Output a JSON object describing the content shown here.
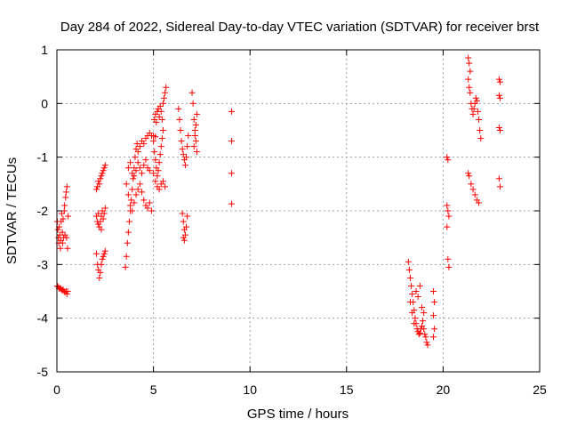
{
  "chart_data": {
    "type": "scatter",
    "title": "Day 284 of 2022, Sidereal Day-to-day VTEC variation (SDTVAR) for receiver brst",
    "xlabel": "GPS time / hours",
    "ylabel": "SDTVAR / TECUs",
    "xlim": [
      0,
      25
    ],
    "ylim": [
      -5,
      1
    ],
    "xticks": [
      0,
      5,
      10,
      15,
      20,
      25
    ],
    "yticks": [
      -5,
      -4,
      -3,
      -2,
      -1,
      0,
      1
    ],
    "grid": true,
    "marker": "+",
    "series": [
      {
        "name": "SDTVAR",
        "color": "#ff0000",
        "points": [
          [
            0.02,
            -2.2
          ],
          [
            0.05,
            -2.35
          ],
          [
            0.08,
            -2.5
          ],
          [
            0.1,
            -2.6
          ],
          [
            0.12,
            -2.3
          ],
          [
            0.15,
            -2.45
          ],
          [
            0.18,
            -2.7
          ],
          [
            0.2,
            -2.55
          ],
          [
            0.22,
            -2.2
          ],
          [
            0.25,
            -2.05
          ],
          [
            0.28,
            -2.4
          ],
          [
            0.3,
            -2.6
          ],
          [
            0.32,
            -2.15
          ],
          [
            0.35,
            -2.5
          ],
          [
            0.38,
            -2.0
          ],
          [
            0.4,
            -1.9
          ],
          [
            0.42,
            -2.45
          ],
          [
            0.45,
            -1.75
          ],
          [
            0.48,
            -1.65
          ],
          [
            0.5,
            -2.5
          ],
          [
            0.52,
            -1.55
          ],
          [
            0.55,
            -2.7
          ],
          [
            0.58,
            -2.1
          ],
          [
            0.02,
            -3.4
          ],
          [
            0.08,
            -3.42
          ],
          [
            0.12,
            -3.45
          ],
          [
            0.18,
            -3.44
          ],
          [
            0.22,
            -3.46
          ],
          [
            0.28,
            -3.48
          ],
          [
            0.32,
            -3.47
          ],
          [
            0.38,
            -3.5
          ],
          [
            0.42,
            -3.52
          ],
          [
            0.48,
            -3.5
          ],
          [
            0.52,
            -3.55
          ],
          [
            0.56,
            -3.5
          ],
          [
            2.05,
            -1.6
          ],
          [
            2.1,
            -1.55
          ],
          [
            2.15,
            -1.45
          ],
          [
            2.2,
            -1.5
          ],
          [
            2.25,
            -1.4
          ],
          [
            2.3,
            -1.35
          ],
          [
            2.35,
            -1.3
          ],
          [
            2.4,
            -1.25
          ],
          [
            2.45,
            -1.2
          ],
          [
            2.5,
            -1.15
          ],
          [
            2.05,
            -2.1
          ],
          [
            2.1,
            -2.2
          ],
          [
            2.15,
            -2.25
          ],
          [
            2.2,
            -2.3
          ],
          [
            2.25,
            -2.2
          ],
          [
            2.3,
            -2.1
          ],
          [
            2.35,
            -2.0
          ],
          [
            2.4,
            -2.15
          ],
          [
            2.45,
            -2.05
          ],
          [
            2.5,
            -1.95
          ],
          [
            2.15,
            -2.05
          ],
          [
            2.3,
            -2.35
          ],
          [
            2.05,
            -2.8
          ],
          [
            2.1,
            -3.0
          ],
          [
            2.15,
            -3.1
          ],
          [
            2.2,
            -3.25
          ],
          [
            2.25,
            -3.15
          ],
          [
            2.3,
            -3.0
          ],
          [
            2.35,
            -2.9
          ],
          [
            2.4,
            -2.85
          ],
          [
            2.45,
            -2.8
          ],
          [
            2.5,
            -2.75
          ],
          [
            3.55,
            -3.05
          ],
          [
            3.6,
            -2.85
          ],
          [
            3.65,
            -2.6
          ],
          [
            3.7,
            -2.4
          ],
          [
            3.75,
            -2.2
          ],
          [
            3.8,
            -2.0
          ],
          [
            3.85,
            -1.8
          ],
          [
            3.9,
            -1.6
          ],
          [
            3.95,
            -1.4
          ],
          [
            4.0,
            -1.2
          ],
          [
            4.05,
            -1.0
          ],
          [
            4.1,
            -0.85
          ],
          [
            4.15,
            -0.75
          ],
          [
            4.2,
            -0.9
          ],
          [
            4.3,
            -0.8
          ],
          [
            4.4,
            -0.7
          ],
          [
            4.5,
            -0.75
          ],
          [
            4.6,
            -0.65
          ],
          [
            4.7,
            -0.6
          ],
          [
            4.8,
            -0.55
          ],
          [
            4.9,
            -0.6
          ],
          [
            5.0,
            -0.6
          ],
          [
            5.1,
            -0.62
          ],
          [
            3.6,
            -1.5
          ],
          [
            3.7,
            -1.7
          ],
          [
            3.8,
            -1.9
          ],
          [
            3.9,
            -2.0
          ],
          [
            4.0,
            -1.85
          ],
          [
            4.1,
            -1.7
          ],
          [
            4.2,
            -1.6
          ],
          [
            4.3,
            -1.5
          ],
          [
            4.4,
            -1.65
          ],
          [
            4.5,
            -1.8
          ],
          [
            4.6,
            -1.9
          ],
          [
            4.7,
            -1.95
          ],
          [
            4.8,
            -1.85
          ],
          [
            4.9,
            -2.0
          ],
          [
            3.7,
            -1.2
          ],
          [
            3.8,
            -1.1
          ],
          [
            3.9,
            -1.3
          ],
          [
            4.0,
            -1.35
          ],
          [
            4.1,
            -1.25
          ],
          [
            4.2,
            -1.1
          ],
          [
            4.3,
            -1.2
          ],
          [
            4.4,
            -1.3
          ],
          [
            4.5,
            -1.15
          ],
          [
            4.6,
            -1.05
          ],
          [
            4.7,
            -1.2
          ],
          [
            4.8,
            -1.25
          ],
          [
            5.05,
            -0.3
          ],
          [
            5.1,
            -0.2
          ],
          [
            5.15,
            -0.35
          ],
          [
            5.2,
            -0.15
          ],
          [
            5.25,
            -0.1
          ],
          [
            5.3,
            -0.25
          ],
          [
            5.35,
            -0.05
          ],
          [
            5.4,
            -0.15
          ],
          [
            5.45,
            -0.3
          ],
          [
            5.5,
            0.0
          ],
          [
            5.55,
            0.1
          ],
          [
            5.6,
            0.2
          ],
          [
            5.65,
            0.3
          ],
          [
            5.0,
            -0.7
          ],
          [
            5.05,
            -0.9
          ],
          [
            5.1,
            -1.05
          ],
          [
            5.15,
            -1.2
          ],
          [
            5.2,
            -1.35
          ],
          [
            5.25,
            -1.25
          ],
          [
            5.3,
            -1.1
          ],
          [
            5.35,
            -0.95
          ],
          [
            5.4,
            -0.8
          ],
          [
            5.45,
            -0.65
          ],
          [
            5.5,
            -0.5
          ],
          [
            5.0,
            -1.3
          ],
          [
            5.1,
            -1.45
          ],
          [
            5.2,
            -1.55
          ],
          [
            5.3,
            -1.6
          ],
          [
            5.4,
            -1.5
          ],
          [
            5.5,
            -1.45
          ],
          [
            5.6,
            -1.55
          ],
          [
            6.3,
            -0.1
          ],
          [
            6.35,
            -0.3
          ],
          [
            6.4,
            -0.5
          ],
          [
            6.45,
            -0.7
          ],
          [
            6.5,
            -0.85
          ],
          [
            6.55,
            -0.95
          ],
          [
            6.6,
            -1.05
          ],
          [
            6.65,
            -1.15
          ],
          [
            6.7,
            -1.0
          ],
          [
            6.75,
            -0.8
          ],
          [
            6.8,
            -0.6
          ],
          [
            6.5,
            -2.05
          ],
          [
            6.55,
            -2.2
          ],
          [
            6.6,
            -2.35
          ],
          [
            6.65,
            -2.45
          ],
          [
            6.55,
            -2.5
          ],
          [
            6.6,
            -2.55
          ],
          [
            6.7,
            -2.3
          ],
          [
            6.75,
            -2.1
          ],
          [
            7.0,
            0.2
          ],
          [
            7.05,
            0.0
          ],
          [
            7.1,
            -0.3
          ],
          [
            7.15,
            -0.5
          ],
          [
            7.2,
            -0.7
          ],
          [
            7.25,
            -0.9
          ],
          [
            7.1,
            -0.8
          ],
          [
            7.15,
            -0.6
          ],
          [
            7.2,
            -0.4
          ],
          [
            7.25,
            -0.2
          ],
          [
            9.05,
            -0.15
          ],
          [
            9.05,
            -0.7
          ],
          [
            9.05,
            -1.3
          ],
          [
            9.05,
            -1.87
          ],
          [
            18.2,
            -2.95
          ],
          [
            18.25,
            -3.1
          ],
          [
            18.3,
            -3.25
          ],
          [
            18.35,
            -3.4
          ],
          [
            18.4,
            -3.55
          ],
          [
            18.45,
            -3.7
          ],
          [
            18.5,
            -3.85
          ],
          [
            18.55,
            -4.0
          ],
          [
            18.6,
            -4.1
          ],
          [
            18.65,
            -4.2
          ],
          [
            18.7,
            -4.25
          ],
          [
            18.75,
            -4.3
          ],
          [
            18.8,
            -4.28
          ],
          [
            18.85,
            -4.2
          ],
          [
            18.9,
            -4.15
          ],
          [
            18.95,
            -4.05
          ],
          [
            19.0,
            -4.2
          ],
          [
            19.05,
            -4.3
          ],
          [
            19.1,
            -4.35
          ],
          [
            19.15,
            -4.45
          ],
          [
            19.2,
            -4.5
          ],
          [
            18.3,
            -3.7
          ],
          [
            18.4,
            -3.9
          ],
          [
            18.5,
            -4.1
          ],
          [
            18.6,
            -3.5
          ],
          [
            18.7,
            -3.6
          ],
          [
            18.8,
            -3.4
          ],
          [
            18.9,
            -3.8
          ],
          [
            19.0,
            -3.9
          ],
          [
            19.5,
            -3.5
          ],
          [
            19.55,
            -3.7
          ],
          [
            19.5,
            -3.95
          ],
          [
            19.55,
            -4.2
          ],
          [
            19.5,
            -4.35
          ],
          [
            20.2,
            -1.0
          ],
          [
            20.25,
            -1.05
          ],
          [
            20.2,
            -1.9
          ],
          [
            20.25,
            -2.0
          ],
          [
            20.3,
            -2.1
          ],
          [
            20.2,
            -2.3
          ],
          [
            20.25,
            -2.9
          ],
          [
            20.3,
            -3.05
          ],
          [
            21.3,
            0.85
          ],
          [
            21.35,
            0.75
          ],
          [
            21.4,
            0.6
          ],
          [
            21.3,
            0.45
          ],
          [
            21.35,
            0.3
          ],
          [
            21.4,
            0.2
          ],
          [
            21.45,
            0.0
          ],
          [
            21.5,
            -0.1
          ],
          [
            21.55,
            -0.2
          ],
          [
            21.6,
            -0.1
          ],
          [
            21.65,
            0.0
          ],
          [
            21.7,
            0.1
          ],
          [
            21.75,
            0.05
          ],
          [
            21.8,
            -0.15
          ],
          [
            21.85,
            -0.3
          ],
          [
            21.9,
            -0.5
          ],
          [
            21.95,
            -0.65
          ],
          [
            21.3,
            -1.3
          ],
          [
            21.35,
            -1.35
          ],
          [
            21.45,
            -1.5
          ],
          [
            21.55,
            -1.6
          ],
          [
            21.65,
            -1.7
          ],
          [
            21.75,
            -1.8
          ],
          [
            21.85,
            -1.85
          ],
          [
            22.9,
            0.45
          ],
          [
            22.95,
            0.4
          ],
          [
            22.9,
            0.15
          ],
          [
            22.95,
            0.1
          ],
          [
            22.9,
            -0.45
          ],
          [
            22.95,
            -0.5
          ],
          [
            22.9,
            -1.4
          ],
          [
            22.95,
            -1.55
          ]
        ]
      }
    ]
  }
}
